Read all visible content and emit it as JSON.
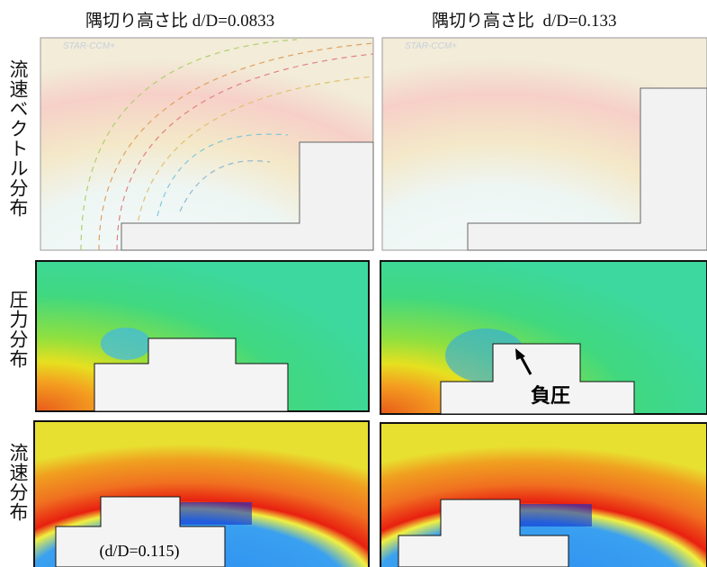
{
  "columns": [
    "隅切り高さ比 d/D=0.0833",
    "隅切り高さ比  d/D=0.133"
  ],
  "rows": [
    "流速ベクトル分布",
    "圧力分布",
    "流速分布"
  ],
  "watermark": "STAR-CCM+",
  "annotations": {
    "negative_pressure": "負圧",
    "ratio_label": "(d/D=0.115)"
  }
}
